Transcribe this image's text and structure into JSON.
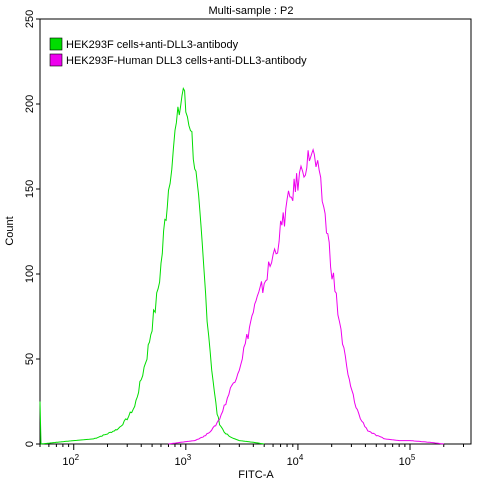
{
  "chart_data": {
    "type": "line",
    "title": "Multi-sample : P2",
    "xlabel": "FITC-A",
    "ylabel": "Count",
    "x_scale": "log",
    "xlim": [
      50,
      350000
    ],
    "ylim": [
      0,
      250
    ],
    "x_ticks": [
      {
        "value": 100,
        "base": "10",
        "exp": "2"
      },
      {
        "value": 1000,
        "base": "10",
        "exp": "3"
      },
      {
        "value": 10000,
        "base": "10",
        "exp": "4"
      },
      {
        "value": 100000,
        "base": "10",
        "exp": "5"
      }
    ],
    "y_ticks": [
      0,
      50,
      100,
      150,
      200,
      250
    ],
    "legend_position": "top-left",
    "series": [
      {
        "name": "HEK293F cells+anti-DLL3-antibody",
        "color": "#00dd00",
        "points": [
          [
            50,
            25
          ],
          [
            51,
            0
          ],
          [
            70,
            1
          ],
          [
            100,
            2
          ],
          [
            150,
            3
          ],
          [
            200,
            6
          ],
          [
            250,
            9
          ],
          [
            300,
            15
          ],
          [
            350,
            22
          ],
          [
            400,
            38
          ],
          [
            450,
            52
          ],
          [
            500,
            70
          ],
          [
            550,
            85
          ],
          [
            600,
            105
          ],
          [
            650,
            130
          ],
          [
            700,
            150
          ],
          [
            750,
            168
          ],
          [
            800,
            182
          ],
          [
            850,
            192
          ],
          [
            900,
            200
          ],
          [
            950,
            210
          ],
          [
            1000,
            196
          ],
          [
            1100,
            188
          ],
          [
            1200,
            165
          ],
          [
            1300,
            140
          ],
          [
            1400,
            115
          ],
          [
            1500,
            88
          ],
          [
            1600,
            65
          ],
          [
            1700,
            45
          ],
          [
            1800,
            30
          ],
          [
            1900,
            18
          ],
          [
            2000,
            12
          ],
          [
            2200,
            7
          ],
          [
            2500,
            4
          ],
          [
            3000,
            2
          ],
          [
            4000,
            1
          ],
          [
            5000,
            0
          ]
        ]
      },
      {
        "name": "HEK293F-Human DLL3 cells+anti-DLL3-antibody",
        "color": "#ee00ee",
        "points": [
          [
            700,
            0
          ],
          [
            900,
            1
          ],
          [
            1200,
            2
          ],
          [
            1500,
            5
          ],
          [
            1800,
            10
          ],
          [
            2000,
            15
          ],
          [
            2200,
            22
          ],
          [
            2500,
            32
          ],
          [
            3000,
            45
          ],
          [
            3500,
            62
          ],
          [
            4000,
            78
          ],
          [
            5000,
            95
          ],
          [
            6000,
            110
          ],
          [
            7000,
            125
          ],
          [
            8000,
            140
          ],
          [
            9000,
            148
          ],
          [
            10000,
            155
          ],
          [
            11000,
            162
          ],
          [
            12000,
            165
          ],
          [
            13000,
            172
          ],
          [
            14000,
            168
          ],
          [
            15000,
            160
          ],
          [
            17000,
            140
          ],
          [
            19000,
            115
          ],
          [
            22000,
            85
          ],
          [
            25000,
            60
          ],
          [
            28000,
            40
          ],
          [
            32000,
            25
          ],
          [
            36000,
            15
          ],
          [
            42000,
            8
          ],
          [
            50000,
            5
          ],
          [
            60000,
            3
          ],
          [
            80000,
            2
          ],
          [
            100000,
            2
          ],
          [
            150000,
            1
          ],
          [
            200000,
            0
          ]
        ]
      }
    ]
  }
}
